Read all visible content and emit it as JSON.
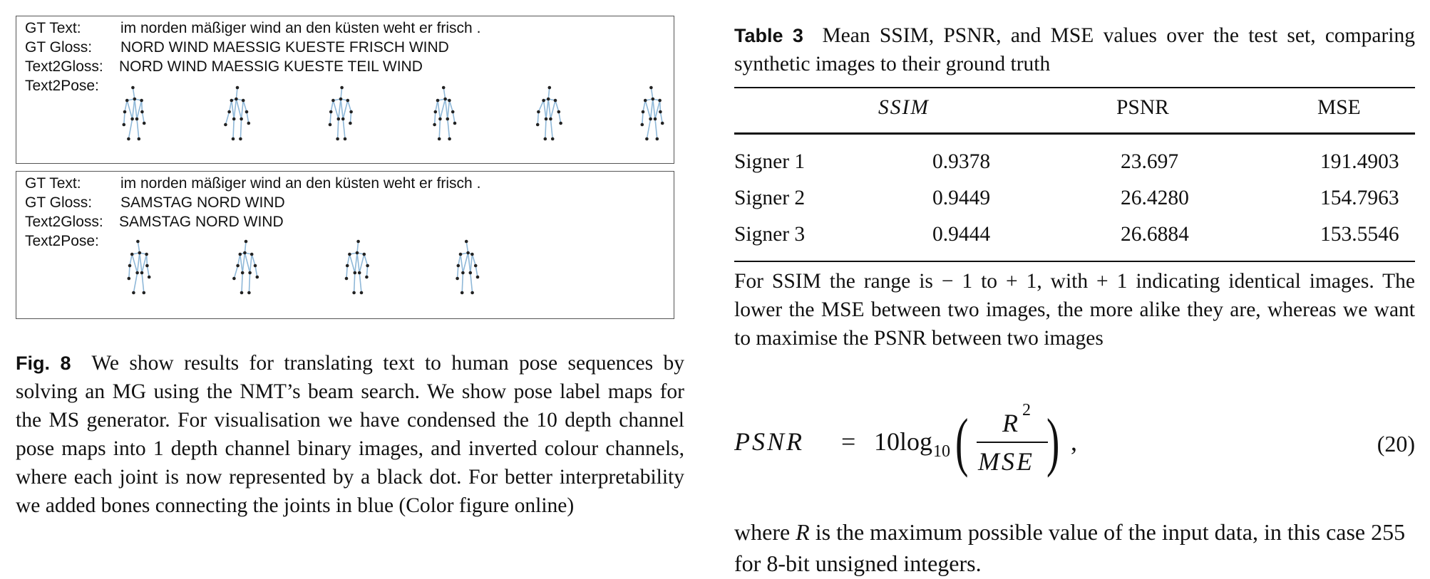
{
  "figure": {
    "panels": [
      {
        "rows": [
          {
            "label": "GT Text:",
            "value": "im norden mäßiger wind an den küsten weht er frisch ."
          },
          {
            "label": "GT Gloss:",
            "value": "NORD WIND MAESSIG KUESTE FRISCH WIND"
          },
          {
            "label": "Text2Gloss:",
            "value": "NORD WIND MAESSIG KUESTE TEIL WIND"
          },
          {
            "label": "Text2Pose:",
            "value": ""
          }
        ],
        "pose_count": 6
      },
      {
        "rows": [
          {
            "label": "GT Text:",
            "value": "im norden mäßiger wind an den küsten weht er frisch ."
          },
          {
            "label": "GT Gloss:",
            "value": "SAMSTAG NORD WIND"
          },
          {
            "label": "Text2Gloss:",
            "value": "SAMSTAG NORD WIND"
          },
          {
            "label": "Text2Pose:",
            "value": ""
          }
        ],
        "pose_count": 4
      }
    ],
    "caption_label": "Fig. 8",
    "caption_text": "We show results for translating text to human pose sequences by solving an MG using the NMT’s beam search. We show pose label maps for the MS generator. For visualisation we have condensed the 10 depth channel pose maps into 1 depth channel binary images, and inverted colour channels, where each joint is now represented by a black dot. For better interpretability we added bones connecting the joints in blue (Color figure online)",
    "bone_color": "#8fb8d8",
    "joint_color": "#222222"
  },
  "table": {
    "label": "Table 3",
    "caption": "Mean SSIM, PSNR, and MSE values over the test set, comparing synthetic images to their ground truth",
    "headers": [
      "",
      "SSIM",
      "PSNR",
      "MSE"
    ],
    "rows": [
      [
        "Signer 1",
        "0.9378",
        "23.697",
        "191.4903"
      ],
      [
        "Signer 2",
        "0.9449",
        "26.4280",
        "154.7963"
      ],
      [
        "Signer 3",
        "0.9444",
        "26.6884",
        "153.5546"
      ]
    ],
    "note": "For SSIM the range is − 1 to + 1, with + 1 indicating identical images. The lower the MSE between two images, the more alike they are, whereas we want to maximise the PSNR between two images"
  },
  "equation": {
    "lhs": "PSNR",
    "equals": "=",
    "coef": "10log",
    "sub": "10",
    "numerator": "R",
    "numerator_exp": "2",
    "denominator": "MSE",
    "trailing": ",",
    "number": "(20)"
  },
  "paragraph": {
    "before": "where ",
    "var": "R",
    "after": " is the maximum possible value of the input data, in this case 255 for 8-bit unsigned integers."
  }
}
